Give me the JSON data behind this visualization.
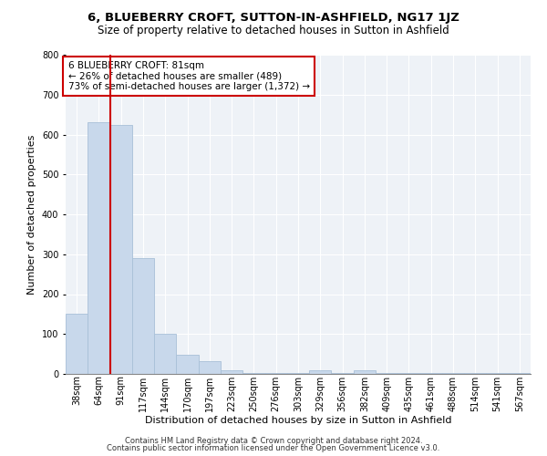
{
  "title": "6, BLUEBERRY CROFT, SUTTON-IN-ASHFIELD, NG17 1JZ",
  "subtitle": "Size of property relative to detached houses in Sutton in Ashfield",
  "xlabel": "Distribution of detached houses by size in Sutton in Ashfield",
  "ylabel": "Number of detached properties",
  "footnote1": "Contains HM Land Registry data © Crown copyright and database right 2024.",
  "footnote2": "Contains public sector information licensed under the Open Government Licence v3.0.",
  "annotation_line1": "6 BLUEBERRY CROFT: 81sqm",
  "annotation_line2": "← 26% of detached houses are smaller (489)",
  "annotation_line3": "73% of semi-detached houses are larger (1,372) →",
  "bar_color": "#c8d8eb",
  "bar_edge_color": "#a8c0d8",
  "redline_color": "#cc0000",
  "background_color": "#eef2f7",
  "categories": [
    "38sqm",
    "64sqm",
    "91sqm",
    "117sqm",
    "144sqm",
    "170sqm",
    "197sqm",
    "223sqm",
    "250sqm",
    "276sqm",
    "303sqm",
    "329sqm",
    "356sqm",
    "382sqm",
    "409sqm",
    "435sqm",
    "461sqm",
    "488sqm",
    "514sqm",
    "541sqm",
    "567sqm"
  ],
  "values": [
    150,
    630,
    623,
    290,
    100,
    48,
    32,
    10,
    2,
    2,
    2,
    10,
    2,
    10,
    2,
    2,
    2,
    2,
    2,
    2,
    2
  ],
  "ylim": [
    0,
    800
  ],
  "yticks": [
    0,
    100,
    200,
    300,
    400,
    500,
    600,
    700,
    800
  ],
  "redline_x": 1.5,
  "title_fontsize": 9.5,
  "subtitle_fontsize": 8.5,
  "tick_fontsize": 7,
  "label_fontsize": 8,
  "annotation_fontsize": 7.5,
  "footnote_fontsize": 6
}
